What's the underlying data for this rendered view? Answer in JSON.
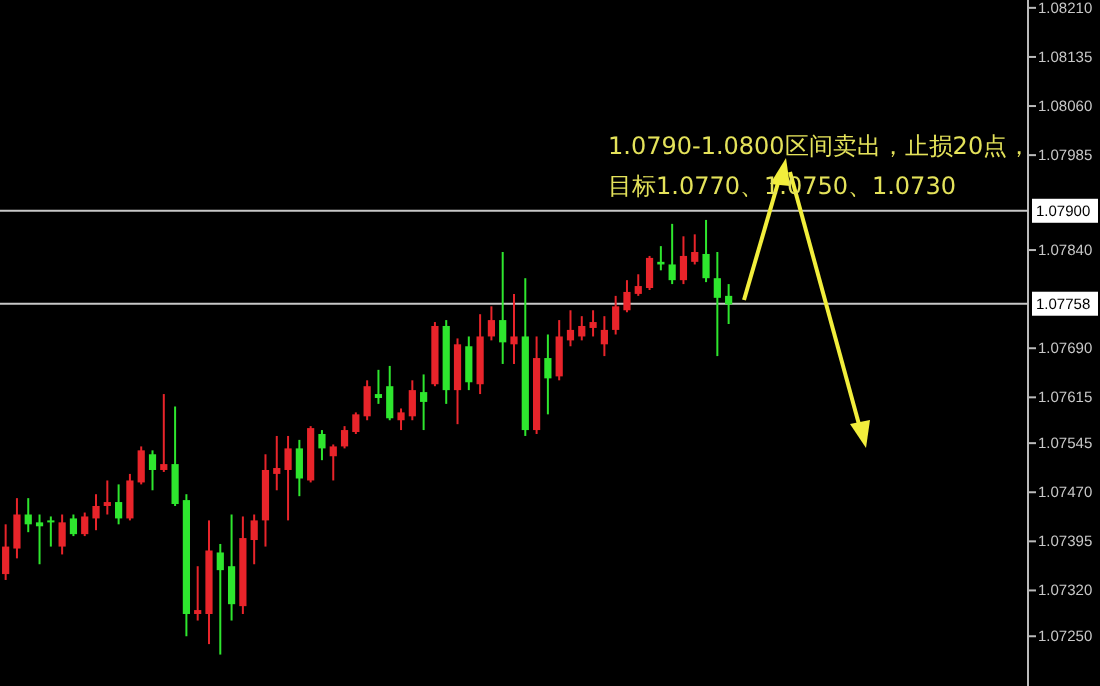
{
  "chart_data": {
    "type": "candlestick",
    "categories": [
      null,
      null,
      null,
      null,
      null,
      null,
      null,
      null,
      null,
      null,
      null,
      null,
      null,
      null,
      null,
      null,
      null,
      null,
      null,
      null,
      null,
      null,
      null,
      null,
      null,
      null,
      null,
      null,
      null,
      null,
      null,
      null,
      null,
      null,
      null,
      null,
      null,
      null,
      null,
      null,
      null,
      null,
      null,
      null,
      null,
      null,
      null,
      null,
      null,
      null,
      null,
      null,
      null,
      null,
      null,
      null,
      null,
      null,
      null,
      null,
      null,
      null,
      null,
      null,
      null,
      null,
      null,
      null,
      null,
      null,
      null,
      null,
      null,
      null,
      null,
      null,
      null,
      null,
      null,
      null,
      null,
      null,
      null,
      null,
      null,
      null,
      null,
      null,
      null,
      null,
      null
    ],
    "ohlc": [
      [
        1.07345,
        1.07421,
        1.07336,
        1.07387
      ],
      [
        1.07384,
        1.07461,
        1.07369,
        1.07436
      ],
      [
        1.07436,
        1.07461,
        1.07409,
        1.07421
      ],
      [
        1.07424,
        1.07436,
        1.0736,
        1.07418
      ],
      [
        1.07427,
        1.07433,
        1.07387,
        1.07424
      ],
      [
        1.07387,
        1.07436,
        1.07375,
        1.07424
      ],
      [
        1.0743,
        1.07436,
        1.07403,
        1.07406
      ],
      [
        1.07406,
        1.07439,
        1.07403,
        1.07433
      ],
      [
        1.0743,
        1.07467,
        1.07412,
        1.07449
      ],
      [
        1.07449,
        1.07488,
        1.07436,
        1.07455
      ],
      [
        1.07455,
        1.07482,
        1.07421,
        1.0743
      ],
      [
        1.0743,
        1.07498,
        1.07427,
        1.07488
      ],
      [
        1.07485,
        1.0754,
        1.07482,
        1.07534
      ],
      [
        1.07528,
        1.07534,
        1.07473,
        1.07504
      ],
      [
        1.07504,
        1.0762,
        1.07501,
        1.07513
      ],
      [
        1.07513,
        1.07601,
        1.07449,
        1.07452
      ],
      [
        1.07458,
        1.07467,
        1.0725,
        1.07284
      ],
      [
        1.07284,
        1.07357,
        1.07274,
        1.0729
      ],
      [
        1.07284,
        1.07427,
        1.07238,
        1.07381
      ],
      [
        1.07378,
        1.07391,
        1.07222,
        1.07351
      ],
      [
        1.07357,
        1.07436,
        1.07274,
        1.07299
      ],
      [
        1.07296,
        1.07433,
        1.07284,
        1.074
      ],
      [
        1.07397,
        1.07436,
        1.0736,
        1.07427
      ],
      [
        1.07427,
        1.07528,
        1.07387,
        1.07504
      ],
      [
        1.07498,
        1.07556,
        1.07473,
        1.07507
      ],
      [
        1.07504,
        1.07556,
        1.07427,
        1.07537
      ],
      [
        1.07537,
        1.0755,
        1.07464,
        1.07491
      ],
      [
        1.07488,
        1.07571,
        1.07485,
        1.07568
      ],
      [
        1.07559,
        1.07565,
        1.07519,
        1.07537
      ],
      [
        1.07525,
        1.07543,
        1.07488,
        1.0754
      ],
      [
        1.0754,
        1.07571,
        1.07537,
        1.07565
      ],
      [
        1.07562,
        1.07592,
        1.07559,
        1.07589
      ],
      [
        1.07586,
        1.07641,
        1.0758,
        1.07632
      ],
      [
        1.0762,
        1.07657,
        1.07605,
        1.07614
      ],
      [
        1.07632,
        1.07663,
        1.0758,
        1.07583
      ],
      [
        1.0758,
        1.07598,
        1.07565,
        1.07592
      ],
      [
        1.07586,
        1.07641,
        1.0758,
        1.07626
      ],
      [
        1.07623,
        1.0765,
        1.07565,
        1.07608
      ],
      [
        1.07635,
        1.0773,
        1.07632,
        1.07724
      ],
      [
        1.07724,
        1.07733,
        1.07605,
        1.07626
      ],
      [
        1.07626,
        1.07705,
        1.07574,
        1.07696
      ],
      [
        1.07693,
        1.07708,
        1.07626,
        1.07638
      ],
      [
        1.07635,
        1.07742,
        1.0762,
        1.07708
      ],
      [
        1.07708,
        1.07754,
        1.07702,
        1.07733
      ],
      [
        1.07733,
        1.07837,
        1.07666,
        1.07699
      ],
      [
        1.07696,
        1.07773,
        1.07666,
        1.07708
      ],
      [
        1.07708,
        1.07797,
        1.07556,
        1.07565
      ],
      [
        1.07565,
        1.07708,
        1.07559,
        1.07675
      ],
      [
        1.07675,
        1.07711,
        1.07589,
        1.07644
      ],
      [
        1.07647,
        1.07733,
        1.07641,
        1.07708
      ],
      [
        1.07702,
        1.07748,
        1.07693,
        1.07718
      ],
      [
        1.07708,
        1.07739,
        1.07702,
        1.07724
      ],
      [
        1.07721,
        1.07748,
        1.07708,
        1.0773
      ],
      [
        1.07696,
        1.07739,
        1.07678,
        1.07718
      ],
      [
        1.07718,
        1.0777,
        1.07711,
        1.07754
      ],
      [
        1.07748,
        1.07794,
        1.07745,
        1.07776
      ],
      [
        1.07773,
        1.07803,
        1.0777,
        1.07785
      ],
      [
        1.07782,
        1.07831,
        1.07779,
        1.07828
      ],
      [
        1.07822,
        1.07846,
        1.07809,
        1.07818
      ],
      [
        1.07818,
        1.0788,
        1.07788,
        1.07794
      ],
      [
        1.07794,
        1.07861,
        1.07788,
        1.07831
      ],
      [
        1.07822,
        1.07864,
        1.07818,
        1.07837
      ],
      [
        1.07834,
        1.07886,
        1.07791,
        1.07797
      ],
      [
        1.07797,
        1.07837,
        1.07678,
        1.07767
      ],
      [
        1.0777,
        1.07788,
        1.07727,
        1.07757
      ],
      null,
      null,
      null,
      null,
      null,
      null,
      null,
      null,
      null,
      null,
      null,
      null,
      null,
      null,
      null,
      null,
      null,
      null,
      null,
      null,
      null,
      null,
      null,
      null,
      null,
      null
    ],
    "colors": [
      "#e8242a",
      "#e8242a",
      "#2ee62e",
      "#2ee62e",
      "#2ee62e",
      "#e8242a",
      "#2ee62e",
      "#e8242a",
      "#e8242a",
      "#e8242a",
      "#2ee62e",
      "#e8242a",
      "#e8242a",
      "#2ee62e",
      "#e8242a",
      "#2ee62e",
      "#2ee62e",
      "#e8242a",
      "#e8242a",
      "#2ee62e",
      "#2ee62e",
      "#e8242a",
      "#e8242a",
      "#e8242a",
      "#e8242a",
      "#e8242a",
      "#2ee62e",
      "#e8242a",
      "#2ee62e",
      "#e8242a",
      "#e8242a",
      "#e8242a",
      "#e8242a",
      "#2ee62e",
      "#2ee62e",
      "#e8242a",
      "#e8242a",
      "#2ee62e",
      "#e8242a",
      "#2ee62e",
      "#e8242a",
      "#2ee62e",
      "#e8242a",
      "#e8242a",
      "#2ee62e",
      "#e8242a",
      "#2ee62e",
      "#e8242a",
      "#2ee62e",
      "#e8242a",
      "#e8242a",
      "#e8242a",
      "#e8242a",
      "#e8242a",
      "#e8242a",
      "#e8242a",
      "#e8242a",
      "#e8242a",
      "#2ee62e",
      "#2ee62e",
      "#e8242a",
      "#e8242a",
      "#2ee62e",
      "#2ee62e",
      "#2ee62e",
      null,
      null,
      null,
      null,
      null,
      null,
      null,
      null,
      null,
      null,
      null,
      null,
      null,
      null,
      null,
      null,
      null,
      null,
      null,
      null,
      null,
      null,
      null,
      null,
      null,
      null
    ],
    "ylim": [
      1.07174,
      1.08222
    ],
    "yticks": [
      {
        "value": 1.0821,
        "label": "1.08210"
      },
      {
        "value": 1.08135,
        "label": "1.08135"
      },
      {
        "value": 1.0806,
        "label": "1.08060"
      },
      {
        "value": 1.07985,
        "label": "1.07985"
      },
      {
        "value": 1.0784,
        "label": "1.07840"
      },
      {
        "value": 1.0769,
        "label": "1.07690"
      },
      {
        "value": 1.07615,
        "label": "1.07615"
      },
      {
        "value": 1.07545,
        "label": "1.07545"
      },
      {
        "value": 1.0747,
        "label": "1.07470"
      },
      {
        "value": 1.07395,
        "label": "1.07395"
      },
      {
        "value": 1.0732,
        "label": "1.07320"
      },
      {
        "value": 1.0725,
        "label": "1.07250"
      }
    ],
    "ref_lines": [
      {
        "axis": "y",
        "value": 1.079,
        "label": "1.07900",
        "color": "#c8c8c8"
      },
      {
        "axis": "y",
        "value": 1.07758,
        "label": "1.07758",
        "color": "#c8c8c8"
      }
    ],
    "annotations": [
      "1.0790-1.0800区间卖出，止损20点，",
      "目标1.0770、1.0750、1.0730"
    ],
    "tick_labels": "y"
  }
}
